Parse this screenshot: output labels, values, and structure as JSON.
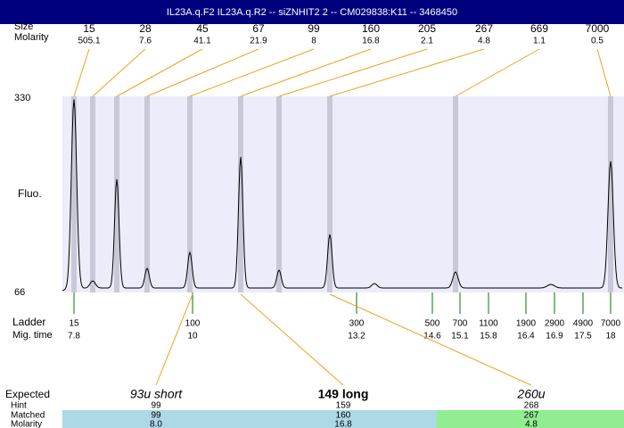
{
  "header": {
    "title": "IL23A.q.F2 IL23A.q.R2 -- siZNHIT2 2 -- CM029838:K11 -- 3468450"
  },
  "top_table": {
    "row_labels": [
      "Size",
      "Molarity"
    ],
    "sizes": [
      "15",
      "28",
      "45",
      "67",
      "99",
      "160",
      "205",
      "267",
      "669",
      "7000"
    ],
    "molarities": [
      "505.1",
      "7.6",
      "41.1",
      "21.9",
      "8",
      "16.8",
      "2.1",
      "4.8",
      "1.1",
      "0.5"
    ]
  },
  "plot": {
    "y_top_label": "330",
    "y_axis_label": "Fluo.",
    "y_bottom_label": "66"
  },
  "ladder": {
    "row_labels": [
      "Ladder",
      "Mig. time"
    ],
    "sizes": [
      "15",
      "100",
      "300",
      "500",
      "700",
      "1100",
      "1900",
      "2900",
      "4900",
      "7000"
    ],
    "mig_times": [
      "7.8",
      "10",
      "13.2",
      "14.6",
      "15.1",
      "15.8",
      "16.4",
      "16.9",
      "17.5",
      "18"
    ]
  },
  "expected": {
    "row_labels": [
      "Expected",
      "Hint",
      "Matched",
      "Molarity"
    ],
    "columns": [
      {
        "name": "93u short",
        "hint": "99",
        "matched": "99",
        "molarity": "8.0"
      },
      {
        "name": "149 long",
        "hint": "159",
        "matched": "160",
        "molarity": "16.8"
      },
      {
        "name": "260u",
        "hint": "268",
        "matched": "267",
        "molarity": "4.8"
      }
    ]
  }
}
